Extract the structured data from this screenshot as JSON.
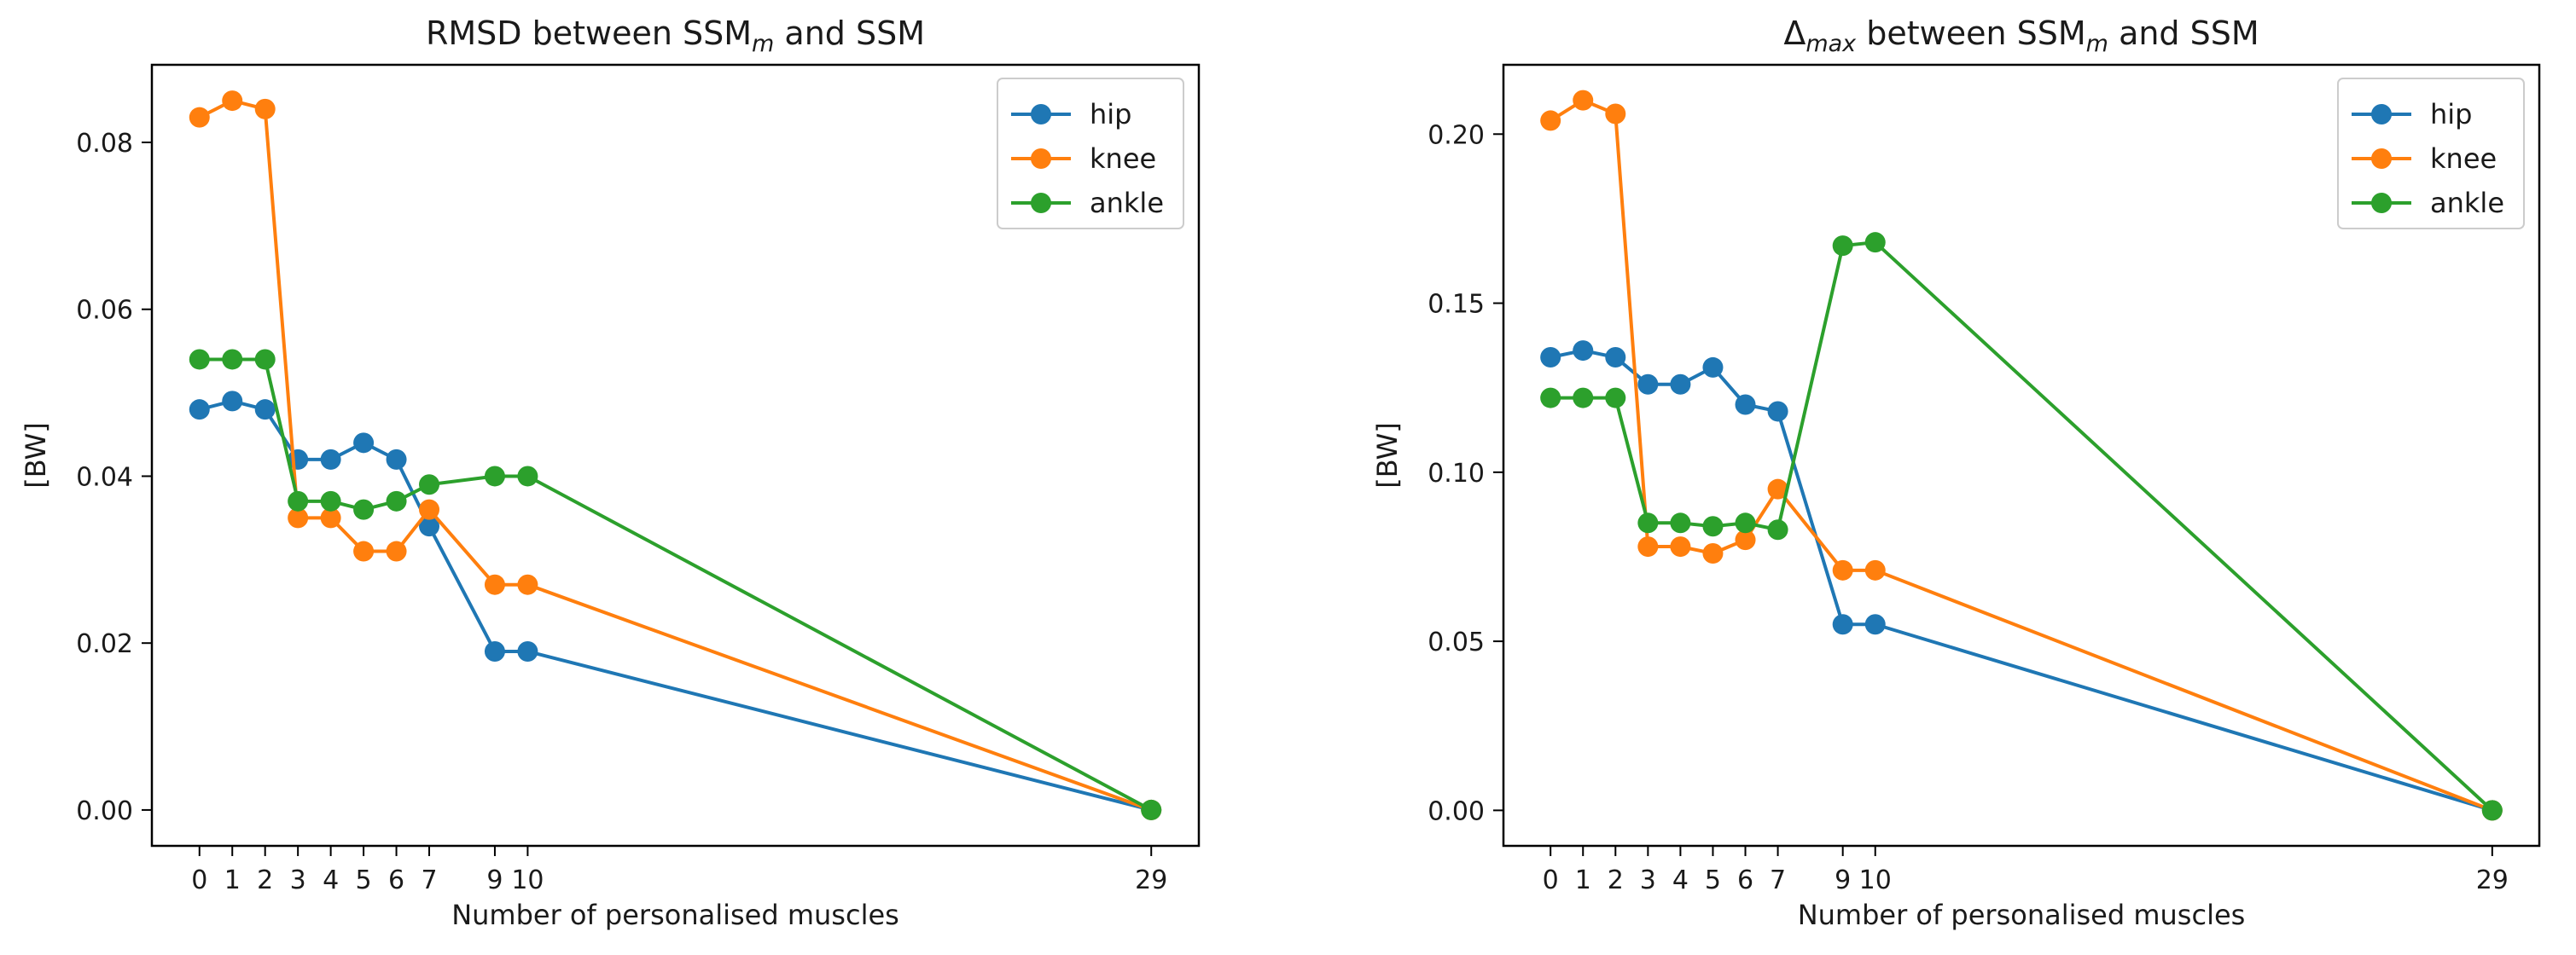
{
  "chart_data": [
    {
      "type": "line",
      "title": "RMSD between SSM",
      "title_sub": "m",
      "title_suffix": " and SSM",
      "title_sub_style": "italic",
      "xlabel": "Number of personalised muscles",
      "ylabel": "[BW]",
      "x": [
        0,
        1,
        2,
        3,
        4,
        5,
        6,
        7,
        9,
        10,
        29
      ],
      "x_tick_labels": [
        "0",
        "1",
        "2",
        "3",
        "4",
        "5",
        "6",
        "7",
        "9",
        "10",
        "29"
      ],
      "xlim": [
        -1.45,
        30.45
      ],
      "ylim": [
        -0.0043,
        0.0893
      ],
      "y_ticks": [
        0.0,
        0.02,
        0.04,
        0.06,
        0.08
      ],
      "y_tick_labels": [
        "0.00",
        "0.02",
        "0.04",
        "0.06",
        "0.08"
      ],
      "grid": false,
      "legend_position": "top-right",
      "series": [
        {
          "name": "hip",
          "color": "#1f77b4",
          "values": [
            0.048,
            0.049,
            0.048,
            0.042,
            0.042,
            0.044,
            0.042,
            0.034,
            0.019,
            0.019,
            0.0
          ]
        },
        {
          "name": "knee",
          "color": "#ff7f0e",
          "values": [
            0.083,
            0.085,
            0.084,
            0.035,
            0.035,
            0.031,
            0.031,
            0.036,
            0.027,
            0.027,
            0.0
          ]
        },
        {
          "name": "ankle",
          "color": "#2ca02c",
          "values": [
            0.054,
            0.054,
            0.054,
            0.037,
            0.037,
            0.036,
            0.037,
            0.039,
            0.04,
            0.04,
            0.0
          ]
        }
      ]
    },
    {
      "type": "line",
      "title_prefix": "Δ",
      "title_sub": "max",
      "title_mid": " between SSM",
      "title_sub2": "m",
      "title_suffix": " and SSM",
      "xlabel": "Number of personalised muscles",
      "ylabel": "[BW]",
      "x": [
        0,
        1,
        2,
        3,
        4,
        5,
        6,
        7,
        9,
        10,
        29
      ],
      "x_tick_labels": [
        "0",
        "1",
        "2",
        "3",
        "4",
        "5",
        "6",
        "7",
        "9",
        "10",
        "29"
      ],
      "xlim": [
        -1.45,
        30.45
      ],
      "ylim": [
        -0.0105,
        0.2205
      ],
      "y_ticks": [
        0.0,
        0.05,
        0.1,
        0.15,
        0.2
      ],
      "y_tick_labels": [
        "0.00",
        "0.05",
        "0.10",
        "0.15",
        "0.20"
      ],
      "grid": false,
      "legend_position": "top-right",
      "series": [
        {
          "name": "hip",
          "color": "#1f77b4",
          "values": [
            0.134,
            0.136,
            0.134,
            0.126,
            0.126,
            0.131,
            0.12,
            0.118,
            0.055,
            0.055,
            0.0
          ]
        },
        {
          "name": "knee",
          "color": "#ff7f0e",
          "values": [
            0.204,
            0.21,
            0.206,
            0.078,
            0.078,
            0.076,
            0.08,
            0.095,
            0.071,
            0.071,
            0.0
          ]
        },
        {
          "name": "ankle",
          "color": "#2ca02c",
          "values": [
            0.122,
            0.122,
            0.122,
            0.085,
            0.085,
            0.084,
            0.085,
            0.083,
            0.167,
            0.168,
            0.0
          ]
        }
      ]
    }
  ]
}
